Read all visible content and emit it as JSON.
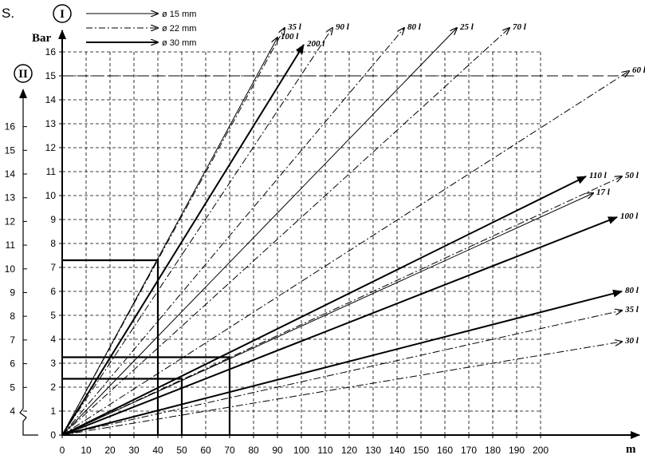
{
  "page": {
    "corner_text": "S."
  },
  "chart_data": {
    "type": "line",
    "xlabel": "m",
    "ylabel": "Bar",
    "xlim": [
      0,
      200
    ],
    "ylim": [
      0,
      16
    ],
    "x_ticks": [
      "0",
      "10",
      "20",
      "30",
      "40",
      "50",
      "60",
      "70",
      "80",
      "90",
      "100",
      "110",
      "120",
      "130",
      "140",
      "150",
      "160",
      "170",
      "180",
      "190",
      "200"
    ],
    "y_ticks_I": [
      "0",
      "1",
      "2",
      "3",
      "4",
      "5",
      "6",
      "7",
      "8",
      "9",
      "10",
      "11",
      "12",
      "13",
      "14",
      "15",
      "16"
    ],
    "y_ticks_II": [
      "4",
      "5",
      "6",
      "7",
      "8",
      "9",
      "10",
      "11",
      "12",
      "13",
      "14",
      "15",
      "16"
    ],
    "scale_I_label": "I",
    "scale_II_label": "II",
    "legend": [
      {
        "label": "ø 15 mm",
        "style": "solid"
      },
      {
        "label": "ø 22 mm",
        "style": "dashdot"
      },
      {
        "label": "ø 30 mm",
        "style": "solid-bold"
      }
    ],
    "series": [
      {
        "name": "35 l",
        "style": "dashdot",
        "scale": "I",
        "end": [
          93,
          17.0
        ]
      },
      {
        "name": "100 l",
        "style": "solid",
        "scale": "I",
        "end": [
          90,
          16.6
        ]
      },
      {
        "name": "90 l",
        "style": "dashdot",
        "scale": "I",
        "end": [
          113,
          17.0
        ]
      },
      {
        "name": "200 l",
        "style": "bold",
        "scale": "I",
        "end": [
          101,
          16.3
        ]
      },
      {
        "name": "80 l",
        "style": "dashdot",
        "scale": "I",
        "end": [
          143,
          17.0
        ]
      },
      {
        "name": "25 l",
        "style": "solid",
        "scale": "I",
        "end": [
          165,
          17.0
        ]
      },
      {
        "name": "70 l",
        "style": "dashdot",
        "scale": "I",
        "end": [
          187,
          17.0
        ]
      },
      {
        "name": "60 l",
        "style": "dashdot",
        "scale": "I",
        "end": [
          237,
          15.2
        ]
      },
      {
        "name": "110 l",
        "style": "bold",
        "scale": "II",
        "end": [
          219,
          10.8
        ]
      },
      {
        "name": "50 l",
        "style": "dashdot",
        "scale": "II",
        "end": [
          234,
          10.8
        ]
      },
      {
        "name": "17 l",
        "style": "solid",
        "scale": "II",
        "end": [
          222,
          10.1
        ]
      },
      {
        "name": "100 l",
        "style": "bold",
        "scale": "II",
        "end": [
          232,
          9.1
        ]
      },
      {
        "name": "80 l",
        "style": "bold",
        "scale": "II",
        "end": [
          234,
          6.0
        ]
      },
      {
        "name": "35 l",
        "style": "dashdot",
        "scale": "II",
        "end": [
          234,
          5.2
        ]
      },
      {
        "name": "30 l",
        "style": "dashdot",
        "scale": "II",
        "end": [
          234,
          3.9
        ]
      }
    ],
    "guides": [
      {
        "x": 40,
        "y": 7.3
      },
      {
        "x": 70,
        "y": 3.25
      },
      {
        "x": 50,
        "y": 2.35
      }
    ],
    "reference_line_y": 15,
    "grid": true
  }
}
